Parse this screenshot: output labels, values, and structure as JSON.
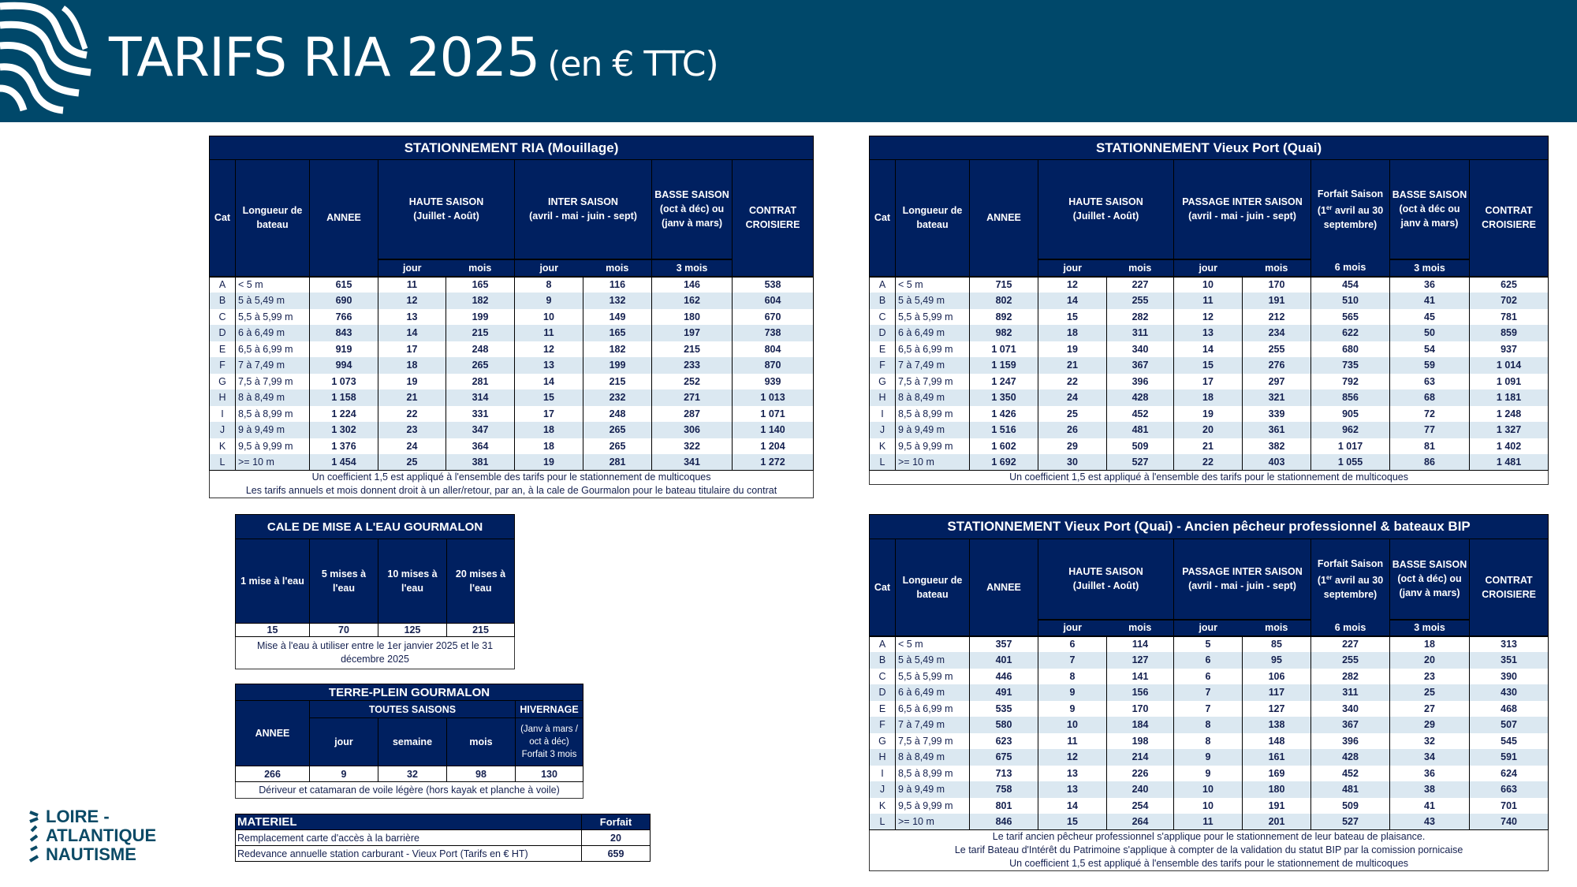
{
  "banner": {
    "title": "TARIFS RIA 2025",
    "subtitle": "(en € TTC)"
  },
  "common": {
    "cat": "Cat",
    "longueur": "Longueur de bateau",
    "annee": "ANNEE",
    "haute": "HAUTE SAISON",
    "haute_sub": "(Juillet - Août)",
    "jour": "jour",
    "mois": "mois",
    "contrat": "CONTRAT CROISIERE",
    "trois_mois": "3 mois",
    "six_mois": "6 mois",
    "forfait_a": "Forfait Saison",
    "forfait_b": "(1",
    "forfait_sup": "er",
    "forfait_c": " avril au 30 septembre)"
  },
  "ria": {
    "title": "STATIONNEMENT RIA (Mouillage)",
    "inter": "INTER SAISON",
    "inter_sub": "(avril - mai - juin - sept)",
    "basse": "BASSE SAISON (oct à déc) ou (janv à mars)",
    "rows": [
      [
        "A",
        "< 5 m",
        "615",
        "11",
        "165",
        "8",
        "116",
        "146",
        "538"
      ],
      [
        "B",
        "5 à 5,49 m",
        "690",
        "12",
        "182",
        "9",
        "132",
        "162",
        "604"
      ],
      [
        "C",
        "5,5 à 5,99 m",
        "766",
        "13",
        "199",
        "10",
        "149",
        "180",
        "670"
      ],
      [
        "D",
        "6 à 6,49 m",
        "843",
        "14",
        "215",
        "11",
        "165",
        "197",
        "738"
      ],
      [
        "E",
        "6,5 à 6,99 m",
        "919",
        "17",
        "248",
        "12",
        "182",
        "215",
        "804"
      ],
      [
        "F",
        "7 à 7,49 m",
        "994",
        "18",
        "265",
        "13",
        "199",
        "233",
        "870"
      ],
      [
        "G",
        "7,5 à 7,99 m",
        "1 073",
        "19",
        "281",
        "14",
        "215",
        "252",
        "939"
      ],
      [
        "H",
        "8 à 8,49 m",
        "1 158",
        "21",
        "314",
        "15",
        "232",
        "271",
        "1 013"
      ],
      [
        "I",
        "8,5 à 8,99 m",
        "1 224",
        "22",
        "331",
        "17",
        "248",
        "287",
        "1 071"
      ],
      [
        "J",
        "9 à 9,49 m",
        "1 302",
        "23",
        "347",
        "18",
        "265",
        "306",
        "1 140"
      ],
      [
        "K",
        "9,5 à 9,99 m",
        "1 376",
        "24",
        "364",
        "18",
        "265",
        "322",
        "1 204"
      ],
      [
        "L",
        ">= 10 m",
        "1 454",
        "25",
        "381",
        "19",
        "281",
        "341",
        "1 272"
      ]
    ],
    "notes": [
      "Un coefficient 1,5 est appliqué à l'ensemble des tarifs pour le stationnement de multicoques",
      "Les tarifs annuels et mois donnent droit à un aller/retour, par an, à la cale de Gourmalon pour le bateau titulaire du contrat"
    ]
  },
  "vieux_port": {
    "title": "STATIONNEMENT Vieux Port (Quai)",
    "passage": "PASSAGE INTER SAISON",
    "passage_sub": "(avril - mai - juin - sept)",
    "basse": "BASSE SAISON (oct à déc ou janv à mars)",
    "rows": [
      [
        "A",
        "< 5 m",
        "715",
        "12",
        "227",
        "10",
        "170",
        "454",
        "36",
        "625"
      ],
      [
        "B",
        "5 à 5,49 m",
        "802",
        "14",
        "255",
        "11",
        "191",
        "510",
        "41",
        "702"
      ],
      [
        "C",
        "5,5 à 5,99 m",
        "892",
        "15",
        "282",
        "12",
        "212",
        "565",
        "45",
        "781"
      ],
      [
        "D",
        "6 à 6,49 m",
        "982",
        "18",
        "311",
        "13",
        "234",
        "622",
        "50",
        "859"
      ],
      [
        "E",
        "6,5 à 6,99 m",
        "1 071",
        "19",
        "340",
        "14",
        "255",
        "680",
        "54",
        "937"
      ],
      [
        "F",
        "7 à 7,49 m",
        "1 159",
        "21",
        "367",
        "15",
        "276",
        "735",
        "59",
        "1 014"
      ],
      [
        "G",
        "7,5 à 7,99 m",
        "1 247",
        "22",
        "396",
        "17",
        "297",
        "792",
        "63",
        "1 091"
      ],
      [
        "H",
        "8 à 8,49 m",
        "1 350",
        "24",
        "428",
        "18",
        "321",
        "856",
        "68",
        "1 181"
      ],
      [
        "I",
        "8,5 à 8,99 m",
        "1 426",
        "25",
        "452",
        "19",
        "339",
        "905",
        "72",
        "1 248"
      ],
      [
        "J",
        "9 à 9,49 m",
        "1 516",
        "26",
        "481",
        "20",
        "361",
        "962",
        "77",
        "1 327"
      ],
      [
        "K",
        "9,5 à 9,99 m",
        "1 602",
        "29",
        "509",
        "21",
        "382",
        "1 017",
        "81",
        "1 402"
      ],
      [
        "L",
        ">= 10 m",
        "1 692",
        "30",
        "527",
        "22",
        "403",
        "1 055",
        "86",
        "1 481"
      ]
    ],
    "notes": [
      "Un coefficient 1,5 est appliqué à l'ensemble des tarifs pour le stationnement de multicoques"
    ]
  },
  "pecheur": {
    "title": "STATIONNEMENT Vieux Port (Quai) - Ancien pêcheur professionnel & bateaux BIP",
    "passage": "PASSAGE INTER SAISON",
    "passage_sub": "(avril - mai - juin - sept)",
    "basse": "BASSE SAISON (oct à déc) ou (janv à mars)",
    "rows": [
      [
        "A",
        "< 5 m",
        "357",
        "6",
        "114",
        "5",
        "85",
        "227",
        "18",
        "313"
      ],
      [
        "B",
        "5 à 5,49 m",
        "401",
        "7",
        "127",
        "6",
        "95",
        "255",
        "20",
        "351"
      ],
      [
        "C",
        "5,5 à 5,99 m",
        "446",
        "8",
        "141",
        "6",
        "106",
        "282",
        "23",
        "390"
      ],
      [
        "D",
        "6 à 6,49 m",
        "491",
        "9",
        "156",
        "7",
        "117",
        "311",
        "25",
        "430"
      ],
      [
        "E",
        "6,5 à 6,99 m",
        "535",
        "9",
        "170",
        "7",
        "127",
        "340",
        "27",
        "468"
      ],
      [
        "F",
        "7 à 7,49 m",
        "580",
        "10",
        "184",
        "8",
        "138",
        "367",
        "29",
        "507"
      ],
      [
        "G",
        "7,5 à 7,99 m",
        "623",
        "11",
        "198",
        "8",
        "148",
        "396",
        "32",
        "545"
      ],
      [
        "H",
        "8 à 8,49 m",
        "675",
        "12",
        "214",
        "9",
        "161",
        "428",
        "34",
        "591"
      ],
      [
        "I",
        "8,5 à 8,99 m",
        "713",
        "13",
        "226",
        "9",
        "169",
        "452",
        "36",
        "624"
      ],
      [
        "J",
        "9 à 9,49 m",
        "758",
        "13",
        "240",
        "10",
        "180",
        "481",
        "38",
        "663"
      ],
      [
        "K",
        "9,5 à 9,99 m",
        "801",
        "14",
        "254",
        "10",
        "191",
        "509",
        "41",
        "701"
      ],
      [
        "L",
        ">= 10 m",
        "846",
        "15",
        "264",
        "11",
        "201",
        "527",
        "43",
        "740"
      ]
    ],
    "notes": [
      "Le tarif ancien pêcheur professionnel s'applique pour le stationnement de leur bateau de plaisance.",
      "Le tarif Bateau d'Intérêt du Patrimoine s'applique à compter de la validation du statut BIP par la comission pornicaise",
      "Un coefficient 1,5 est appliqué à l'ensemble des tarifs pour le stationnement de multicoques"
    ]
  },
  "cale": {
    "title": "CALE DE MISE A L'EAU GOURMALON",
    "headers": [
      "1 mise à l'eau",
      "5 mises à l'eau",
      "10 mises à l'eau",
      "20 mises à l'eau"
    ],
    "values": [
      "15",
      "70",
      "125",
      "215"
    ],
    "note": "Mise à l'eau à utiliser entre le 1er janvier 2025 et le 31 décembre 2025"
  },
  "terre_plein": {
    "title": "TERRE-PLEIN GOURMALON",
    "annee": "ANNEE",
    "toutes": "TOUTES SAISONS",
    "hivernage": "HIVERNAGE",
    "sub": [
      "jour",
      "semaine",
      "mois"
    ],
    "hiv_sub": "(Janv à mars / oct à déc) Forfait 3 mois",
    "values": [
      "266",
      "9",
      "32",
      "98",
      "130"
    ],
    "note": "Dériveur et catamaran de voile légère (hors kayak et planche à voile)"
  },
  "materiel": {
    "title": "MATERIEL",
    "forfait": "Forfait",
    "rows": [
      [
        "Remplacement carte d'accès à la barrière",
        "20"
      ],
      [
        "Redevance annuelle station carburant - Vieux Port (Tarifs en €  HT)",
        "659"
      ]
    ]
  },
  "logo": {
    "lines": [
      "LOIRE -",
      "ATLANTIQUE",
      "NAUTISME"
    ]
  }
}
